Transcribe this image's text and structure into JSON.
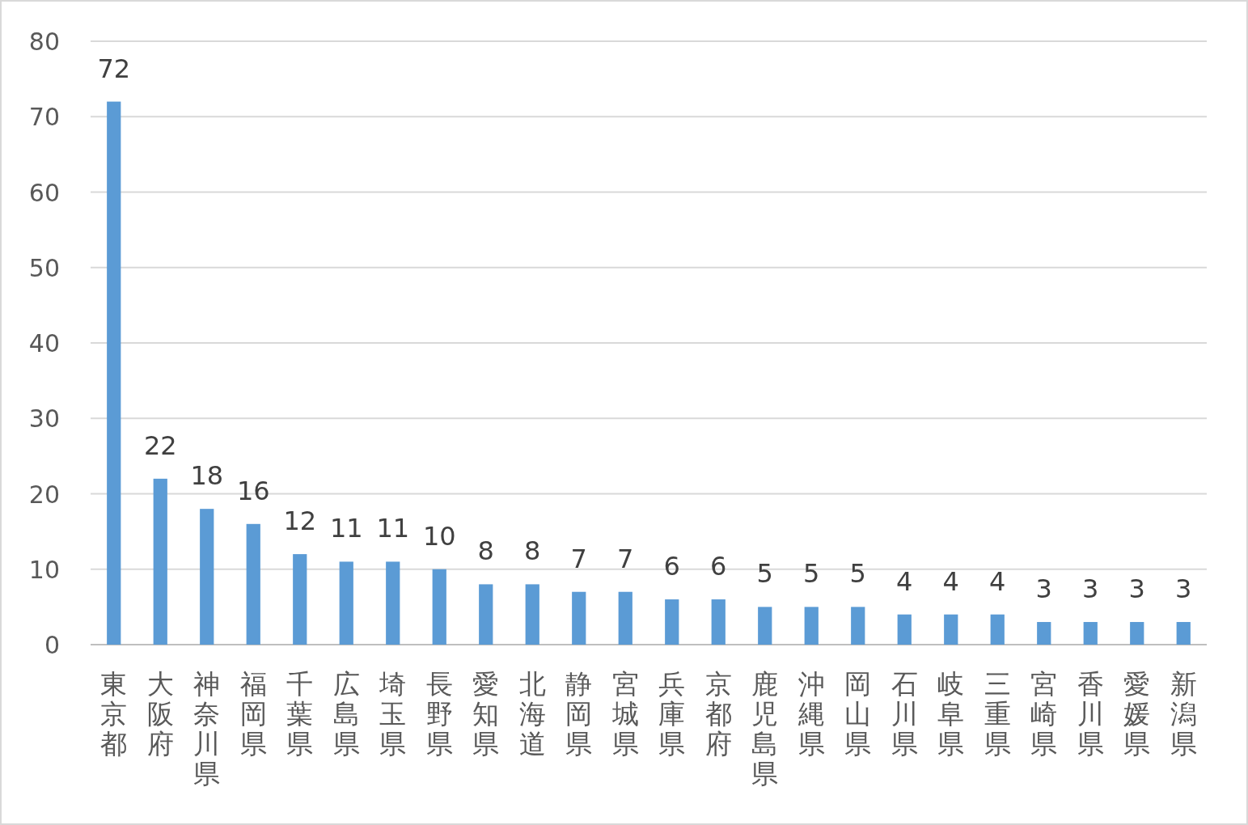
{
  "chart_data": {
    "type": "bar",
    "categories": [
      "東京都",
      "大阪府",
      "神奈川県",
      "福岡県",
      "千葉県",
      "広島県",
      "埼玉県",
      "長野県",
      "愛知県",
      "北海道",
      "静岡県",
      "宮城県",
      "兵庫県",
      "京都府",
      "鹿児島県",
      "沖縄県",
      "岡山県",
      "石川県",
      "岐阜県",
      "三重県",
      "宮崎県",
      "香川県",
      "愛媛県",
      "新潟県"
    ],
    "values": [
      72,
      22,
      18,
      16,
      12,
      11,
      11,
      10,
      8,
      8,
      7,
      7,
      6,
      6,
      5,
      5,
      5,
      4,
      4,
      4,
      3,
      3,
      3,
      3
    ],
    "color": "#5b9bd5",
    "ylim": [
      0,
      80
    ],
    "yticks": [
      0,
      10,
      20,
      30,
      40,
      50,
      60,
      70,
      80
    ],
    "grid": "y",
    "data_labels": true
  }
}
